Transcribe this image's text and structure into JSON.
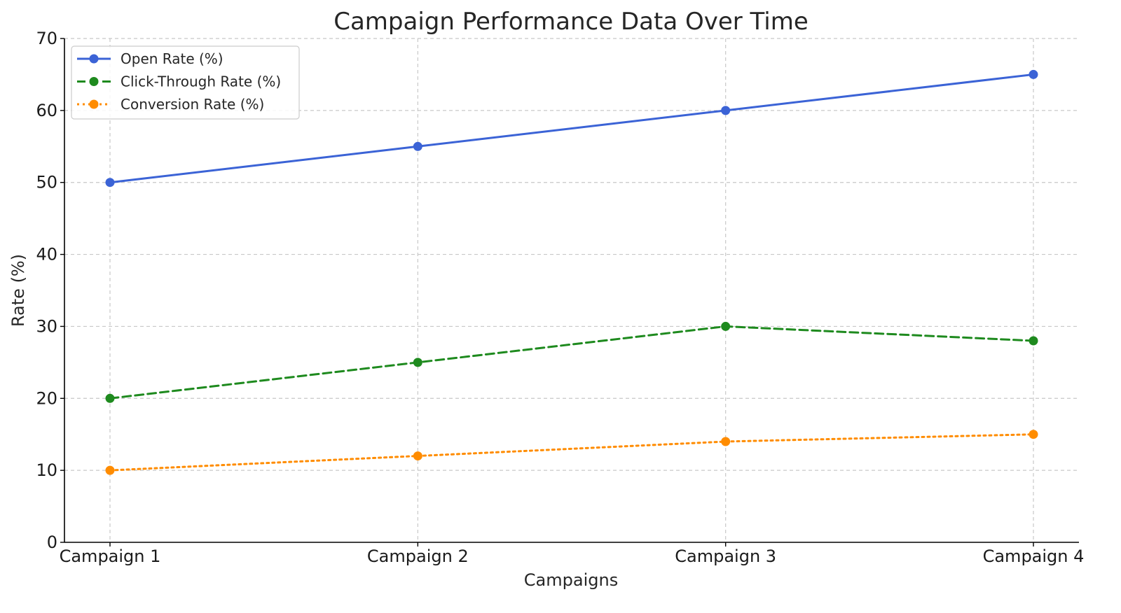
{
  "chart_data": {
    "type": "line",
    "title": "Campaign Performance Data Over Time",
    "xlabel": "Campaigns",
    "ylabel": "Rate (%)",
    "categories": [
      "Campaign 1",
      "Campaign 2",
      "Campaign 3",
      "Campaign 4"
    ],
    "ylim": [
      0,
      70
    ],
    "yticks": [
      0,
      10,
      20,
      30,
      40,
      50,
      60,
      70
    ],
    "grid": true,
    "legend_position": "top-left",
    "series": [
      {
        "name": "Open Rate (%)",
        "values": [
          50,
          55,
          60,
          65
        ],
        "color": "#3b63d6",
        "line_style": "solid",
        "marker": "circle"
      },
      {
        "name": "Click-Through Rate (%)",
        "values": [
          20,
          25,
          30,
          28
        ],
        "color": "#1e8a1e",
        "line_style": "dashed",
        "marker": "circle"
      },
      {
        "name": "Conversion Rate (%)",
        "values": [
          10,
          12,
          14,
          15
        ],
        "color": "#ff8c00",
        "line_style": "dotted",
        "marker": "circle"
      }
    ]
  }
}
